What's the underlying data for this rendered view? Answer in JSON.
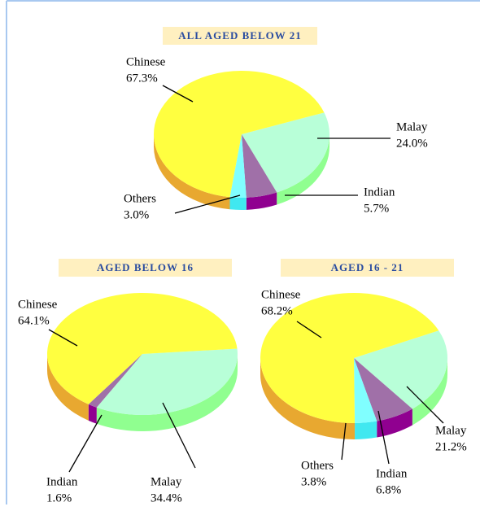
{
  "chart_data": [
    {
      "type": "pie",
      "title": "ALL AGED BELOW 21",
      "categories": [
        "Malay",
        "Indian",
        "Others",
        "Chinese"
      ],
      "values": [
        24.0,
        5.7,
        3.0,
        67.3
      ],
      "value_labels": [
        "24.0%",
        "5.7%",
        "3.0%",
        "67.3%"
      ],
      "colors": [
        "#b8ffd8",
        "#a070a8",
        "#80ffff",
        "#ffff40"
      ],
      "side_colors": [
        "#90ff90",
        "#900090",
        "#40e8f0",
        "#e8a830"
      ]
    },
    {
      "type": "pie",
      "title": "AGED BELOW 16",
      "categories": [
        "Malay",
        "Indian",
        "Chinese"
      ],
      "values": [
        34.4,
        1.6,
        64.1
      ],
      "value_labels": [
        "34.4%",
        "1.6%",
        "64.1%"
      ],
      "colors": [
        "#b8ffd8",
        "#a070a8",
        "#ffff40"
      ],
      "side_colors": [
        "#90ff90",
        "#900090",
        "#e8a830"
      ]
    },
    {
      "type": "pie",
      "title": "AGED 16 - 21",
      "categories": [
        "Malay",
        "Indian",
        "Others",
        "Chinese"
      ],
      "values": [
        21.2,
        6.8,
        3.8,
        68.2
      ],
      "value_labels": [
        "21.2%",
        "6.8%",
        "3.8%",
        "68.2%"
      ],
      "colors": [
        "#b8ffd8",
        "#a070a8",
        "#80ffff",
        "#ffff40"
      ],
      "side_colors": [
        "#90ff90",
        "#900090",
        "#40e8f0",
        "#e8a830"
      ]
    }
  ]
}
